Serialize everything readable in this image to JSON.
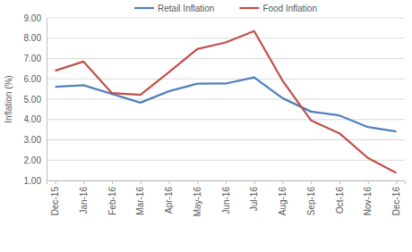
{
  "chart_data": {
    "type": "line",
    "y_label": "Inflation (%)",
    "categories": [
      "Dec-15",
      "Jan-16",
      "Feb-16",
      "Mar-16",
      "Apr-16",
      "May-16",
      "Jun-16",
      "Jul-16",
      "Aug-16",
      "Sep-16",
      "Oct-16",
      "Nov-16",
      "Dec-16"
    ],
    "series": [
      {
        "name": "Retail Inflation",
        "color": "#4f81bd",
        "values": [
          5.61,
          5.69,
          5.26,
          4.83,
          5.39,
          5.76,
          5.77,
          6.07,
          5.05,
          4.39,
          4.2,
          3.63,
          3.41
        ]
      },
      {
        "name": "Food Inflation",
        "color": "#c0504d",
        "values": [
          6.4,
          6.85,
          5.3,
          5.21,
          6.32,
          7.47,
          7.79,
          8.35,
          5.91,
          3.96,
          3.32,
          2.11,
          1.37
        ]
      }
    ],
    "ylim": [
      1,
      9
    ],
    "yticks": [
      {
        "value": 1,
        "label": "1.00"
      },
      {
        "value": 2,
        "label": "2.00"
      },
      {
        "value": 3,
        "label": "3.00"
      },
      {
        "value": 4,
        "label": "4.00"
      },
      {
        "value": 5,
        "label": "5.00"
      },
      {
        "value": 6,
        "label": "6.00"
      },
      {
        "value": 7,
        "label": "7.00"
      },
      {
        "value": 8,
        "label": "8.00"
      },
      {
        "value": 9,
        "label": "9.00"
      }
    ],
    "grid": true,
    "legend": "top"
  }
}
